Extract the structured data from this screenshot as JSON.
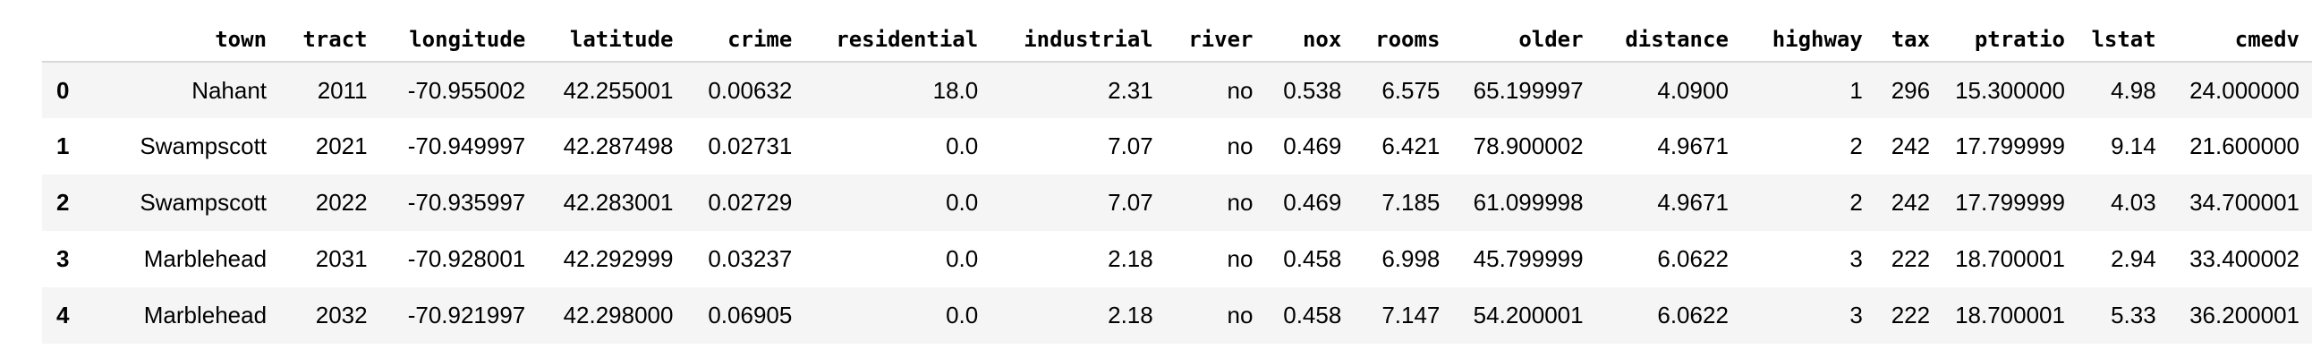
{
  "table": {
    "columns": [
      "town",
      "tract",
      "longitude",
      "latitude",
      "crime",
      "residential",
      "industrial",
      "river",
      "nox",
      "rooms",
      "older",
      "distance",
      "highway",
      "tax",
      "ptratio",
      "lstat",
      "cmedv"
    ],
    "rows": [
      {
        "index": "0",
        "cells": [
          "Nahant",
          "2011",
          "-70.955002",
          "42.255001",
          "0.00632",
          "18.0",
          "2.31",
          "no",
          "0.538",
          "6.575",
          "65.199997",
          "4.0900",
          "1",
          "296",
          "15.300000",
          "4.98",
          "24.000000"
        ]
      },
      {
        "index": "1",
        "cells": [
          "Swampscott",
          "2021",
          "-70.949997",
          "42.287498",
          "0.02731",
          "0.0",
          "7.07",
          "no",
          "0.469",
          "6.421",
          "78.900002",
          "4.9671",
          "2",
          "242",
          "17.799999",
          "9.14",
          "21.600000"
        ]
      },
      {
        "index": "2",
        "cells": [
          "Swampscott",
          "2022",
          "-70.935997",
          "42.283001",
          "0.02729",
          "0.0",
          "7.07",
          "no",
          "0.469",
          "7.185",
          "61.099998",
          "4.9671",
          "2",
          "242",
          "17.799999",
          "4.03",
          "34.700001"
        ]
      },
      {
        "index": "3",
        "cells": [
          "Marblehead",
          "2031",
          "-70.928001",
          "42.292999",
          "0.03237",
          "0.0",
          "2.18",
          "no",
          "0.458",
          "6.998",
          "45.799999",
          "6.0622",
          "3",
          "222",
          "18.700001",
          "2.94",
          "33.400002"
        ]
      },
      {
        "index": "4",
        "cells": [
          "Marblehead",
          "2032",
          "-70.921997",
          "42.298000",
          "0.06905",
          "0.0",
          "2.18",
          "no",
          "0.458",
          "7.147",
          "54.200001",
          "6.0622",
          "3",
          "222",
          "18.700001",
          "5.33",
          "36.200001"
        ]
      }
    ]
  },
  "colors": {
    "background": "#ffffff",
    "row_stripe": "#f5f5f5",
    "header_rule": "#d8d8d8",
    "text": "#000000"
  }
}
